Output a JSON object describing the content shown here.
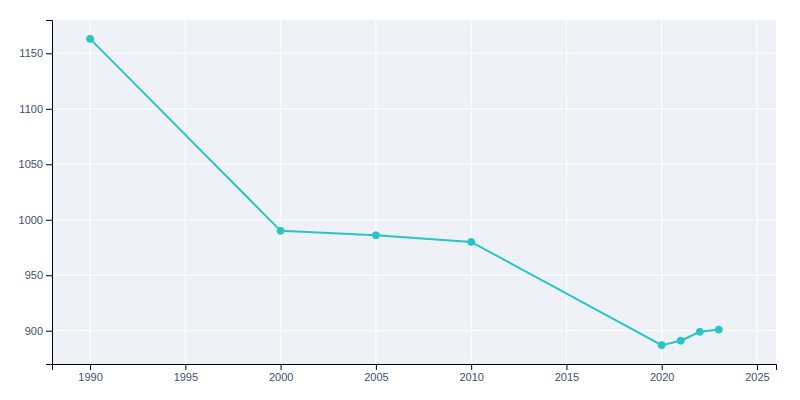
{
  "chart_data": {
    "type": "line",
    "x": [
      1990,
      2000,
      2005,
      2010,
      2020,
      2021,
      2022,
      2023
    ],
    "values": [
      1163,
      990,
      986,
      980,
      887,
      891,
      899,
      901
    ],
    "color": "#2ac4c4",
    "marker": "circle",
    "xlim": [
      1988,
      2026
    ],
    "ylim": [
      870,
      1180
    ],
    "xticks": [
      1990,
      1995,
      2000,
      2005,
      2010,
      2015,
      2020,
      2025
    ],
    "yticks": [
      900,
      950,
      1000,
      1050,
      1100,
      1150
    ],
    "grid": true
  }
}
